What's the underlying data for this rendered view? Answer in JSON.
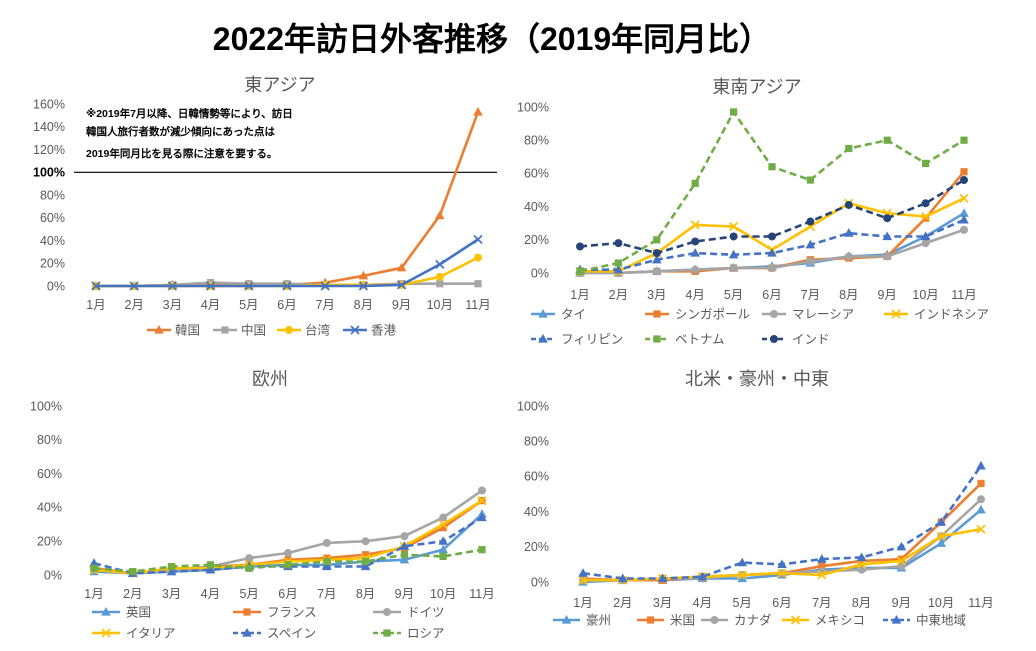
{
  "title": "2022年訪日外客推移（2019年同月比）",
  "chart_data": [
    {
      "type": "line",
      "title": "東アジア",
      "categories": [
        "1月",
        "2月",
        "3月",
        "4月",
        "5月",
        "6月",
        "7月",
        "8月",
        "9月",
        "10月",
        "11月"
      ],
      "ylim": [
        0,
        160
      ],
      "ytick_labels": [
        "0%",
        "20%",
        "40%",
        "60%",
        "80%",
        "100%",
        "120%",
        "140%",
        "160%"
      ],
      "grid": false,
      "legend": "bottom",
      "reference_line": {
        "value": 100,
        "color": "#000000"
      },
      "note_lines": [
        "※2019年7月以降、日韓情勢等により、訪日",
        "韓国人旅行者数が減少傾向にあった点は",
        "2019年同月比を見る際に注意を要する。"
      ],
      "series": [
        {
          "name": "韓国",
          "color": "#ED7D31",
          "marker": "triangle",
          "line": "solid",
          "values": [
            0,
            0,
            1,
            1,
            1,
            1,
            3,
            9,
            16,
            62,
            153
          ]
        },
        {
          "name": "中国",
          "color": "#A5A5A5",
          "marker": "square",
          "line": "solid",
          "values": [
            0,
            0,
            1,
            3,
            2,
            2,
            1,
            1,
            2,
            2,
            2
          ]
        },
        {
          "name": "台湾",
          "color": "#FFC000",
          "marker": "circle",
          "line": "solid",
          "values": [
            0,
            0,
            0,
            0,
            0,
            0,
            1,
            1,
            1,
            8,
            25
          ]
        },
        {
          "name": "香港",
          "color": "#4472C4",
          "marker": "x",
          "line": "solid",
          "values": [
            0,
            0,
            0,
            0,
            0,
            0,
            0,
            0,
            1,
            19,
            41
          ]
        }
      ]
    },
    {
      "type": "line",
      "title": "東南アジア",
      "categories": [
        "1月",
        "2月",
        "3月",
        "4月",
        "5月",
        "6月",
        "7月",
        "8月",
        "9月",
        "10月",
        "11月"
      ],
      "ylim": [
        0,
        100
      ],
      "ytick_labels": [
        "0%",
        "20%",
        "40%",
        "60%",
        "80%",
        "100%"
      ],
      "grid": false,
      "legend": "bottom",
      "series": [
        {
          "name": "タイ",
          "color": "#5B9BD5",
          "marker": "triangle",
          "line": "solid",
          "values": [
            0,
            0,
            1,
            2,
            3,
            4,
            6,
            10,
            11,
            22,
            36
          ]
        },
        {
          "name": "シンガポール",
          "color": "#ED7D31",
          "marker": "square",
          "line": "solid",
          "values": [
            1,
            0,
            1,
            1,
            3,
            3,
            8,
            9,
            10,
            33,
            61
          ]
        },
        {
          "name": "マレーシア",
          "color": "#A5A5A5",
          "marker": "circle",
          "line": "solid",
          "values": [
            0,
            0,
            1,
            2,
            3,
            3,
            7,
            10,
            10,
            18,
            26
          ]
        },
        {
          "name": "インドネシア",
          "color": "#FFC000",
          "marker": "x",
          "line": "solid",
          "values": [
            1,
            1,
            12,
            29,
            28,
            14,
            28,
            42,
            36,
            34,
            45
          ]
        },
        {
          "name": "フィリピン",
          "color": "#4472C4",
          "marker": "triangle",
          "line": "dashed",
          "values": [
            2,
            2,
            8,
            12,
            11,
            12,
            17,
            24,
            22,
            22,
            32
          ]
        },
        {
          "name": "ベトナム",
          "color": "#70AD47",
          "marker": "square",
          "line": "dashed",
          "values": [
            1,
            6,
            20,
            54,
            97,
            64,
            56,
            75,
            80,
            66,
            80
          ]
        },
        {
          "name": "インド",
          "color": "#264478",
          "marker": "circle",
          "line": "dashed",
          "values": [
            16,
            18,
            12,
            19,
            22,
            22,
            31,
            41,
            33,
            42,
            56
          ]
        }
      ]
    },
    {
      "type": "line",
      "title": "欧州",
      "categories": [
        "1月",
        "2月",
        "3月",
        "4月",
        "5月",
        "6月",
        "7月",
        "8月",
        "9月",
        "10月",
        "11月"
      ],
      "ylim": [
        0,
        100
      ],
      "ytick_labels": [
        "0%",
        "20%",
        "40%",
        "60%",
        "80%",
        "100%"
      ],
      "grid": false,
      "legend": "bottom",
      "series": [
        {
          "name": "英国",
          "color": "#5B9BD5",
          "marker": "triangle",
          "line": "solid",
          "values": [
            2,
            1,
            2,
            3,
            5,
            6,
            6,
            8,
            9,
            15,
            36
          ]
        },
        {
          "name": "フランス",
          "color": "#ED7D31",
          "marker": "square",
          "line": "solid",
          "values": [
            4,
            1,
            3,
            5,
            6,
            9,
            10,
            12,
            16,
            28,
            44
          ]
        },
        {
          "name": "ドイツ",
          "color": "#A5A5A5",
          "marker": "circle",
          "line": "solid",
          "values": [
            3,
            1,
            3,
            5,
            10,
            13,
            19,
            20,
            23,
            34,
            50
          ]
        },
        {
          "name": "イタリア",
          "color": "#FFC000",
          "marker": "x",
          "line": "solid",
          "values": [
            3,
            1,
            4,
            4,
            6,
            8,
            9,
            10,
            17,
            30,
            44
          ]
        },
        {
          "name": "スペイン",
          "color": "#4472C4",
          "marker": "triangle",
          "line": "dashed",
          "values": [
            7,
            1,
            2,
            3,
            5,
            5,
            5,
            5,
            17,
            20,
            34
          ]
        },
        {
          "name": "ロシア",
          "color": "#70AD47",
          "marker": "square",
          "line": "dashed",
          "values": [
            4,
            2,
            5,
            6,
            4,
            6,
            8,
            8,
            12,
            11,
            15
          ]
        }
      ]
    },
    {
      "type": "line",
      "title": "北米・豪州・中東",
      "categories": [
        "1月",
        "2月",
        "3月",
        "4月",
        "5月",
        "6月",
        "7月",
        "8月",
        "9月",
        "10月",
        "11月"
      ],
      "ylim": [
        0,
        100
      ],
      "ytick_labels": [
        "0%",
        "20%",
        "40%",
        "60%",
        "80%",
        "100%"
      ],
      "grid": false,
      "legend": "bottom",
      "series": [
        {
          "name": "豪州",
          "color": "#5B9BD5",
          "marker": "triangle",
          "line": "solid",
          "values": [
            0,
            1,
            1,
            2,
            2,
            4,
            7,
            8,
            8,
            22,
            41
          ]
        },
        {
          "name": "米国",
          "color": "#ED7D31",
          "marker": "square",
          "line": "solid",
          "values": [
            2,
            1,
            1,
            3,
            4,
            5,
            9,
            12,
            13,
            34,
            56
          ]
        },
        {
          "name": "カナダ",
          "color": "#A5A5A5",
          "marker": "circle",
          "line": "solid",
          "values": [
            1,
            1,
            2,
            2,
            4,
            5,
            6,
            7,
            9,
            26,
            47
          ]
        },
        {
          "name": "メキシコ",
          "color": "#FFC000",
          "marker": "x",
          "line": "solid",
          "values": [
            1,
            1,
            2,
            3,
            4,
            5,
            4,
            10,
            12,
            26,
            30
          ]
        },
        {
          "name": "中東地域",
          "color": "#4472C4",
          "marker": "triangle",
          "line": "dashed",
          "values": [
            5,
            2,
            2,
            3,
            11,
            10,
            13,
            14,
            20,
            34,
            66
          ]
        }
      ]
    }
  ]
}
